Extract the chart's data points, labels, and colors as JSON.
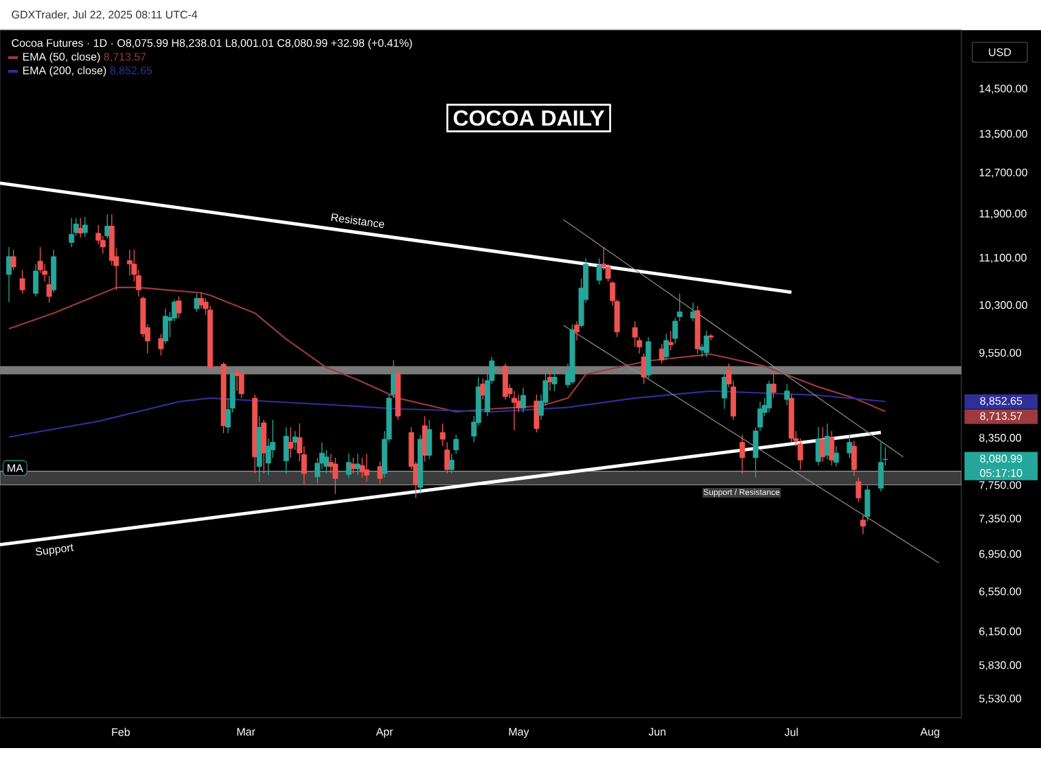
{
  "chart_data": {
    "type": "candlestick",
    "title": "COCOA DAILY",
    "subtitle": "Cocoa Futures · 1D · O8,075.99 H8,238.01 L8,001.01 C8,080.99 +32.98 (+0.41%)",
    "ylabel": "USD",
    "log": true,
    "legend": "top left",
    "xlim": [
      "2025-01-05",
      "2025-08-08"
    ],
    "ylim": [
      5370,
      15920
    ],
    "xticks": [
      {
        "value": "2025-02-01",
        "label": "Feb"
      },
      {
        "value": "2025-03-01",
        "label": "Mar"
      },
      {
        "value": "2025-04-01",
        "label": "Apr"
      },
      {
        "value": "2025-05-01",
        "label": "May"
      },
      {
        "value": "2025-06-01",
        "label": "Jun"
      },
      {
        "value": "2025-07-01",
        "label": "Jul"
      },
      {
        "value": "2025-08-01",
        "label": "Aug"
      }
    ],
    "yticks": [
      {
        "value": 5530,
        "label": "5,530.00"
      },
      {
        "value": 5830,
        "label": "5,830.00"
      },
      {
        "value": 6150,
        "label": "6,150.00"
      },
      {
        "value": 6550,
        "label": "6,550.00"
      },
      {
        "value": 6950,
        "label": "6,950.00"
      },
      {
        "value": 7350,
        "label": "7,350.00"
      },
      {
        "value": 7750,
        "label": "7,750.00"
      },
      {
        "value": 8350,
        "label": "8,350.00"
      },
      {
        "value": 9550,
        "label": "9,550.00"
      },
      {
        "value": 10300,
        "label": "10,300.00"
      },
      {
        "value": 11100,
        "label": "11,100.00"
      },
      {
        "value": 11900,
        "label": "11,900.00"
      },
      {
        "value": 12700,
        "label": "12,700.00"
      },
      {
        "value": 13500,
        "label": "13,500.00"
      },
      {
        "value": 14500,
        "label": "14,500.00"
      }
    ],
    "x": [
      "2025-01-07",
      "2025-01-08",
      "2025-01-10",
      "2025-01-13",
      "2025-01-14",
      "2025-01-15",
      "2025-01-16",
      "2025-01-17",
      "2025-01-21",
      "2025-01-22",
      "2025-01-23",
      "2025-01-24",
      "2025-01-27",
      "2025-01-28",
      "2025-01-29",
      "2025-01-30",
      "2025-01-31",
      "2025-02-03",
      "2025-02-04",
      "2025-02-05",
      "2025-02-06",
      "2025-02-07",
      "2025-02-10",
      "2025-02-11",
      "2025-02-12",
      "2025-02-13",
      "2025-02-14",
      "2025-02-18",
      "2025-02-19",
      "2025-02-20",
      "2025-02-21",
      "2025-02-24",
      "2025-02-25",
      "2025-02-26",
      "2025-02-27",
      "2025-02-28",
      "2025-03-03",
      "2025-03-04",
      "2025-03-05",
      "2025-03-06",
      "2025-03-07",
      "2025-03-10",
      "2025-03-11",
      "2025-03-12",
      "2025-03-13",
      "2025-03-14",
      "2025-03-17",
      "2025-03-18",
      "2025-03-19",
      "2025-03-20",
      "2025-03-21",
      "2025-03-24",
      "2025-03-25",
      "2025-03-26",
      "2025-03-27",
      "2025-03-28",
      "2025-03-31",
      "2025-04-01",
      "2025-04-02",
      "2025-04-03",
      "2025-04-04",
      "2025-04-07",
      "2025-04-08",
      "2025-04-09",
      "2025-04-10",
      "2025-04-11",
      "2025-04-14",
      "2025-04-15",
      "2025-04-16",
      "2025-04-17",
      "2025-04-21",
      "2025-04-22",
      "2025-04-23",
      "2025-04-24",
      "2025-04-25",
      "2025-04-28",
      "2025-04-29",
      "2025-04-30",
      "2025-05-01",
      "2025-05-02",
      "2025-05-05",
      "2025-05-06",
      "2025-05-07",
      "2025-05-08",
      "2025-05-09",
      "2025-05-12",
      "2025-05-13",
      "2025-05-14",
      "2025-05-15",
      "2025-05-16",
      "2025-05-19",
      "2025-05-20",
      "2025-05-21",
      "2025-05-22",
      "2025-05-23",
      "2025-05-27",
      "2025-05-28",
      "2025-05-29",
      "2025-05-30",
      "2025-06-02",
      "2025-06-03",
      "2025-06-04",
      "2025-06-05",
      "2025-06-06",
      "2025-06-09",
      "2025-06-10",
      "2025-06-11",
      "2025-06-12",
      "2025-06-13",
      "2025-06-16",
      "2025-06-17",
      "2025-06-18",
      "2025-06-20",
      "2025-06-23",
      "2025-06-24",
      "2025-06-25",
      "2025-06-26",
      "2025-06-27",
      "2025-06-30",
      "2025-07-01",
      "2025-07-02",
      "2025-07-03",
      "2025-07-07",
      "2025-07-08",
      "2025-07-09",
      "2025-07-10",
      "2025-07-11",
      "2025-07-14",
      "2025-07-15",
      "2025-07-16",
      "2025-07-17",
      "2025-07-18",
      "2025-07-21",
      "2025-07-22"
    ],
    "ohlc": [
      [
        10820,
        11300,
        10360,
        11130
      ],
      [
        11130,
        11250,
        10900,
        10950
      ],
      [
        10750,
        10900,
        10500,
        10560
      ],
      [
        10500,
        11000,
        10450,
        10880
      ],
      [
        11050,
        11300,
        10850,
        10900
      ],
      [
        10880,
        11000,
        10700,
        10820
      ],
      [
        10650,
        10800,
        10350,
        10450
      ],
      [
        10560,
        11250,
        10520,
        11130
      ],
      [
        11380,
        11830,
        11300,
        11530
      ],
      [
        11560,
        11830,
        11500,
        11720
      ],
      [
        11640,
        11830,
        11470,
        11550
      ],
      [
        11560,
        11850,
        11480,
        11700
      ],
      [
        11550,
        11700,
        11350,
        11420
      ],
      [
        11420,
        11500,
        11180,
        11300
      ],
      [
        11500,
        11900,
        11450,
        11680
      ],
      [
        11680,
        11900,
        10980,
        11060
      ],
      [
        11130,
        11280,
        10560,
        10970
      ],
      [
        11060,
        11250,
        10800,
        11000
      ],
      [
        11000,
        11250,
        10700,
        10820
      ],
      [
        10800,
        10900,
        10450,
        10560
      ],
      [
        10420,
        10450,
        9800,
        9850
      ],
      [
        9950,
        10000,
        9550,
        9740
      ],
      [
        9780,
        9850,
        9520,
        9620
      ],
      [
        9740,
        10250,
        9700,
        10130
      ],
      [
        10060,
        10200,
        9800,
        10110
      ],
      [
        10100,
        10400,
        10050,
        10360
      ],
      [
        10380,
        10450,
        10100,
        10180
      ],
      [
        10250,
        10500,
        10200,
        10420
      ],
      [
        10420,
        10520,
        10250,
        10310
      ],
      [
        10360,
        10420,
        10150,
        10250
      ],
      [
        10230,
        10300,
        9300,
        9350
      ],
      [
        9390,
        9420,
        8420,
        8520
      ],
      [
        8500,
        8900,
        8420,
        8740
      ],
      [
        8760,
        9300,
        8700,
        9250
      ],
      [
        9270,
        9320,
        9000,
        9220
      ],
      [
        9250,
        9300,
        8900,
        8960
      ],
      [
        8900,
        8950,
        7900,
        8110
      ],
      [
        7990,
        8650,
        7800,
        8500
      ],
      [
        8560,
        8600,
        7900,
        8160
      ],
      [
        8030,
        8350,
        7880,
        8250
      ],
      [
        8200,
        8600,
        8100,
        8300
      ],
      [
        8060,
        8500,
        7900,
        8380
      ],
      [
        8300,
        8500,
        8100,
        8220
      ],
      [
        8300,
        8450,
        8200,
        8370
      ],
      [
        8360,
        8550,
        8050,
        8160
      ],
      [
        8140,
        8250,
        7760,
        7900
      ],
      [
        7860,
        8100,
        7780,
        8030
      ],
      [
        8030,
        8300,
        7950,
        8160
      ],
      [
        7990,
        8200,
        7900,
        8110
      ],
      [
        8040,
        8150,
        7900,
        7990
      ],
      [
        8020,
        8100,
        7650,
        7840
      ],
      [
        7890,
        8150,
        7850,
        8040
      ],
      [
        8020,
        8100,
        7900,
        7960
      ],
      [
        7960,
        8150,
        7880,
        8020
      ],
      [
        8000,
        8100,
        7850,
        7920
      ],
      [
        7950,
        8150,
        7800,
        7880
      ],
      [
        7990,
        8050,
        7780,
        7840
      ],
      [
        7900,
        8450,
        7850,
        8340
      ],
      [
        8340,
        8950,
        8300,
        8900
      ],
      [
        8950,
        9450,
        8900,
        9250
      ],
      [
        9250,
        9300,
        8600,
        8650
      ],
      [
        8430,
        8500,
        7950,
        7990
      ],
      [
        8020,
        8050,
        7600,
        7760
      ],
      [
        7730,
        8400,
        7650,
        8340
      ],
      [
        8520,
        8650,
        8050,
        8130
      ],
      [
        8130,
        8600,
        8080,
        8470
      ],
      [
        8430,
        8550,
        8250,
        8340
      ],
      [
        8200,
        8300,
        7900,
        7950
      ],
      [
        7950,
        8150,
        7900,
        8070
      ],
      [
        8200,
        8400,
        8150,
        8340
      ],
      [
        8380,
        8650,
        8300,
        8570
      ],
      [
        8560,
        9200,
        8520,
        9060
      ],
      [
        9100,
        9180,
        8880,
        8940
      ],
      [
        8710,
        9350,
        8650,
        9150
      ],
      [
        9150,
        9500,
        9100,
        9440
      ],
      [
        9360,
        9400,
        8880,
        8920
      ],
      [
        9040,
        9100,
        8900,
        8960
      ],
      [
        8900,
        9000,
        8460,
        8840
      ],
      [
        8860,
        8950,
        8700,
        8760
      ],
      [
        8760,
        9050,
        8700,
        8940
      ],
      [
        8860,
        8950,
        8430,
        8480
      ],
      [
        8660,
        8950,
        8600,
        8860
      ],
      [
        8840,
        9250,
        8800,
        9150
      ],
      [
        9200,
        9300,
        9000,
        9130
      ],
      [
        9100,
        9350,
        9000,
        9200
      ],
      [
        9090,
        9400,
        9050,
        9300
      ],
      [
        9130,
        10000,
        9100,
        9920
      ],
      [
        9990,
        10050,
        9750,
        9880
      ],
      [
        9980,
        10750,
        9950,
        10590
      ],
      [
        10400,
        11100,
        10350,
        11000
      ],
      [
        10720,
        11100,
        10650,
        10980
      ],
      [
        11000,
        11300,
        10900,
        10950
      ],
      [
        10950,
        11000,
        10700,
        10750
      ],
      [
        10680,
        10700,
        10300,
        10380
      ],
      [
        10370,
        10400,
        9800,
        9880
      ],
      [
        9950,
        10050,
        9650,
        9800
      ],
      [
        9750,
        9800,
        9550,
        9650
      ],
      [
        9500,
        9550,
        9100,
        9200
      ],
      [
        9230,
        9800,
        9180,
        9730
      ],
      [
        9620,
        9700,
        9400,
        9450
      ],
      [
        9500,
        9850,
        9450,
        9750
      ],
      [
        9720,
        9900,
        9600,
        9680
      ],
      [
        9780,
        10100,
        9700,
        10050
      ],
      [
        10120,
        10500,
        10050,
        10200
      ],
      [
        10100,
        10350,
        10050,
        10200
      ],
      [
        10220,
        10300,
        9550,
        9620
      ],
      [
        9600,
        9700,
        9500,
        9650
      ],
      [
        9560,
        9900,
        9500,
        9820
      ],
      [
        9820,
        9850,
        9750,
        9800
      ],
      [
        8900,
        9300,
        8750,
        9200
      ],
      [
        9300,
        9400,
        9050,
        9100
      ],
      [
        9060,
        9150,
        8600,
        8650
      ],
      [
        8300,
        8400,
        7900,
        8100
      ],
      [
        8100,
        8500,
        7850,
        8450
      ],
      [
        8500,
        8850,
        8450,
        8750
      ],
      [
        8700,
        8900,
        8650,
        8800
      ],
      [
        8760,
        9150,
        8700,
        9100
      ],
      [
        9100,
        9250,
        8900,
        8980
      ],
      [
        8880,
        9100,
        8800,
        9000
      ],
      [
        8900,
        8950,
        8300,
        8350
      ],
      [
        8350,
        8450,
        8250,
        8320
      ],
      [
        8280,
        8350,
        7950,
        8070
      ],
      [
        8050,
        8500,
        8000,
        8340
      ],
      [
        8340,
        8500,
        8050,
        8110
      ],
      [
        8130,
        8550,
        8080,
        8380
      ],
      [
        8360,
        8450,
        8000,
        8070
      ],
      [
        8040,
        8250,
        7990,
        8160
      ],
      [
        8160,
        8400,
        8100,
        8300
      ],
      [
        8250,
        8320,
        7870,
        7950
      ],
      [
        7800,
        7850,
        7550,
        7600
      ],
      [
        7340,
        7400,
        7180,
        7270
      ],
      [
        7380,
        7750,
        7330,
        7700
      ],
      [
        7720,
        8300,
        7680,
        8040
      ],
      [
        8075.99,
        8238.01,
        8001.01,
        8080.99
      ]
    ],
    "series": [
      {
        "type": "line",
        "name": "EMA (50, close)",
        "color": "#9c3a3f",
        "x": [
          "2025-01-07",
          "2025-01-17",
          "2025-01-31",
          "2025-02-05",
          "2025-02-19",
          "2025-02-21",
          "2025-03-03",
          "2025-03-10",
          "2025-03-19",
          "2025-03-26",
          "2025-04-04",
          "2025-04-17",
          "2025-04-25",
          "2025-05-06",
          "2025-05-12",
          "2025-05-16",
          "2025-05-23",
          "2025-05-30",
          "2025-06-13",
          "2025-06-25",
          "2025-07-07",
          "2025-07-15",
          "2025-07-22"
        ],
        "values": [
          9930,
          10180,
          10600,
          10600,
          10510,
          10470,
          10180,
          9770,
          9340,
          9160,
          8900,
          8710,
          8750,
          8790,
          8900,
          9240,
          9340,
          9440,
          9540,
          9360,
          9060,
          8900,
          8713.57
        ]
      },
      {
        "type": "line",
        "name": "EMA (200, close)",
        "color": "#2f2f9a",
        "x": [
          "2025-01-07",
          "2025-01-27",
          "2025-02-14",
          "2025-02-21",
          "2025-03-07",
          "2025-03-19",
          "2025-04-04",
          "2025-04-25",
          "2025-05-12",
          "2025-05-27",
          "2025-06-13",
          "2025-07-07",
          "2025-07-22"
        ],
        "values": [
          8370,
          8580,
          8850,
          8900,
          8850,
          8810,
          8750,
          8710,
          8770,
          8900,
          9000,
          8940,
          8852.65
        ]
      },
      {
        "type": "line",
        "name": "Resistance",
        "color": "#ffffff",
        "x": [
          "2025-01-05",
          "2025-07-01"
        ],
        "values": [
          12500,
          10520
        ]
      },
      {
        "type": "line",
        "name": "Support",
        "color": "#ffffff",
        "x": [
          "2025-01-05",
          "2025-07-21"
        ],
        "values": [
          7060,
          8430
        ]
      },
      {
        "type": "line",
        "color": "#8a8a8a",
        "x": [
          "2025-05-11",
          "2025-07-26"
        ],
        "values": [
          11800,
          8110
        ]
      },
      {
        "type": "line",
        "color": "#8a8a8a",
        "x": [
          "2025-05-11",
          "2025-08-03"
        ],
        "values": [
          9985,
          6860
        ]
      }
    ],
    "ref_lines": [
      {
        "axis": "y",
        "value": 9300,
        "color": "#7a7a7a"
      }
    ],
    "bands": [
      {
        "axis": "y",
        "from": 7760,
        "to": 7930,
        "label": "Support / Resistance",
        "color": "#3c3c3c"
      }
    ],
    "annotations": [
      "GDXTrader, Jul 22, 2025 08:11 UTC-4",
      "MA",
      "05:17:10",
      "8,852.65",
      "8,713.57",
      "8,080.99"
    ]
  }
}
